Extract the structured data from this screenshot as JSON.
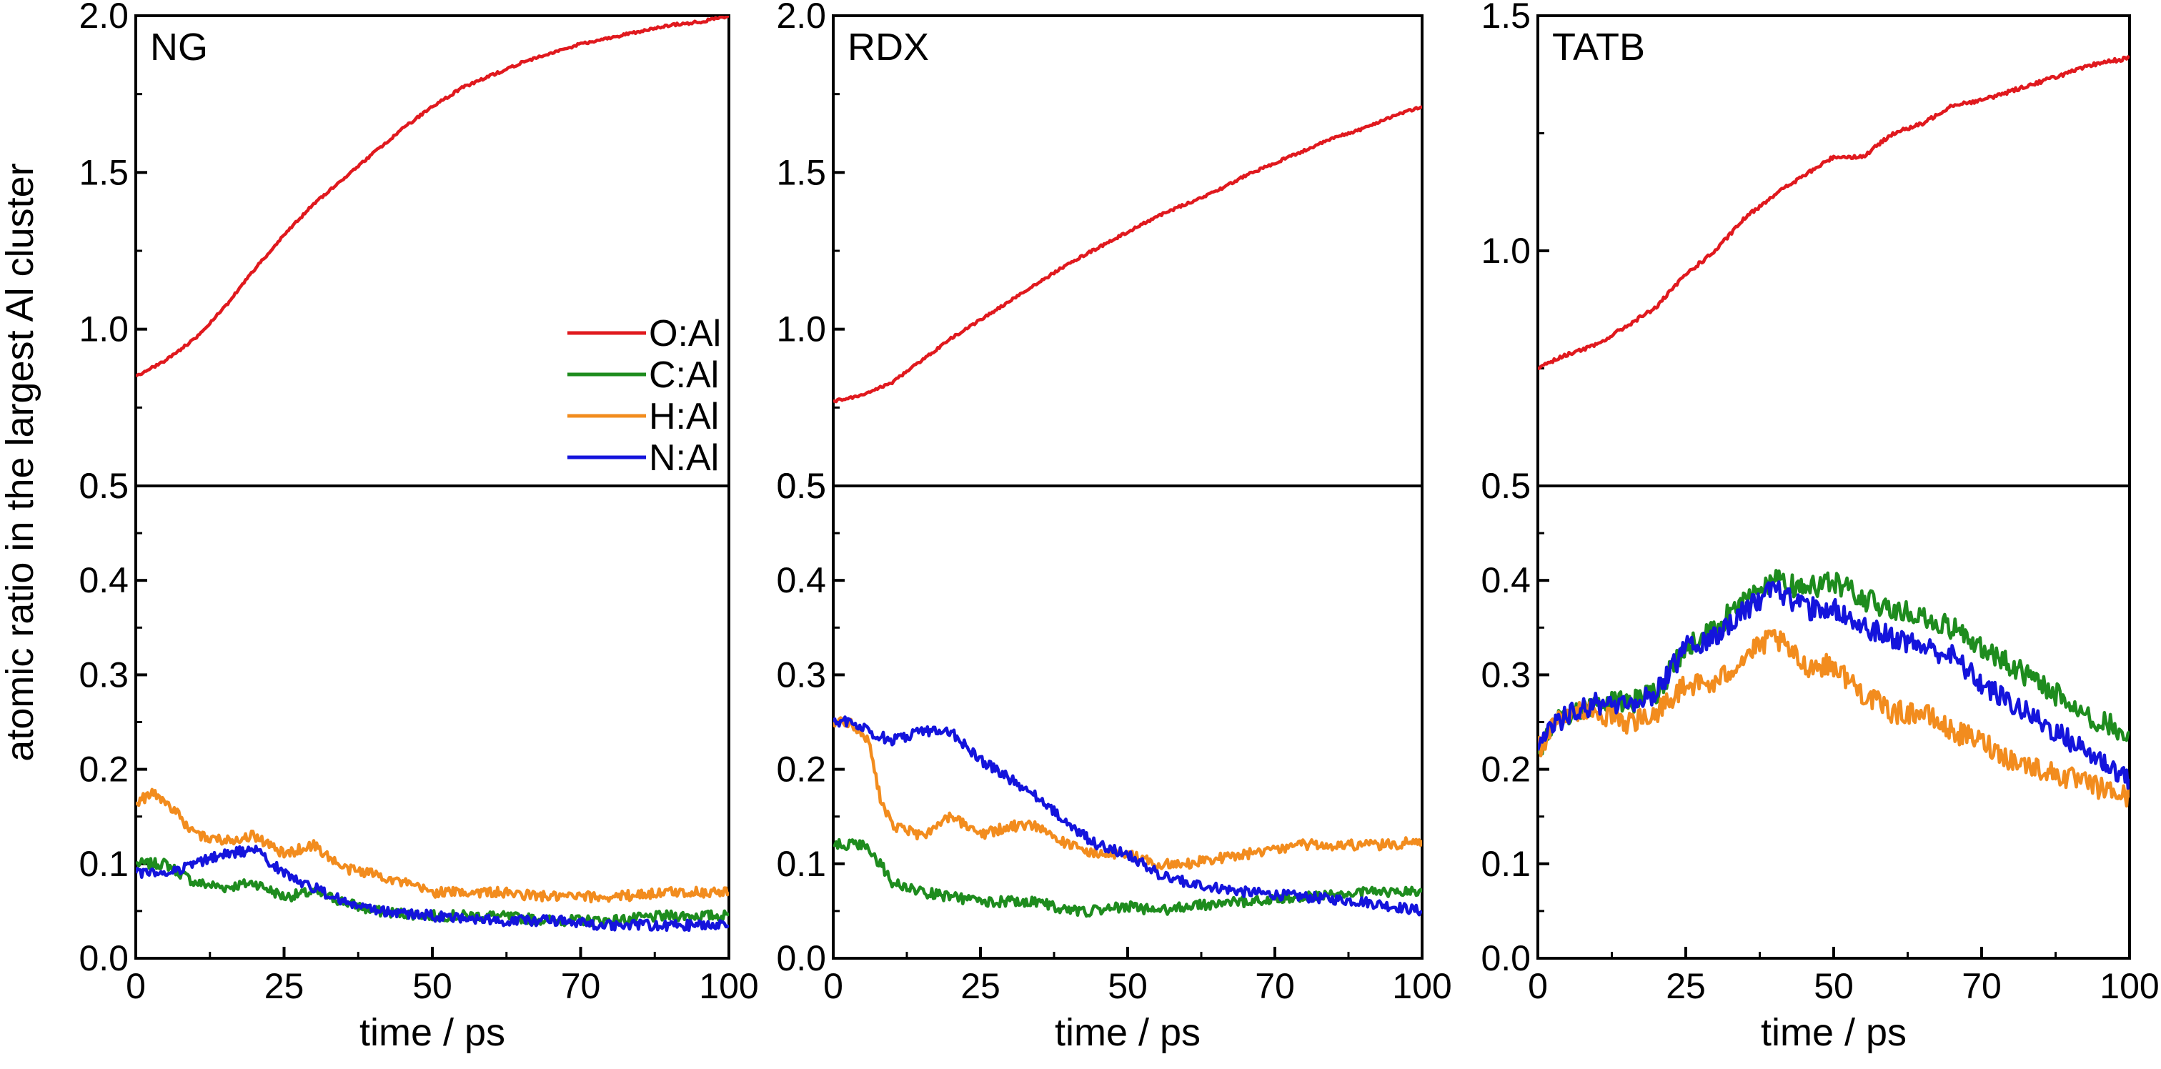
{
  "ylabel": "atomic ratio in the largest Al cluster",
  "xlabel": "time / ps",
  "legend": [
    "O:Al",
    "C:Al",
    "H:Al",
    "N:Al"
  ],
  "colors": {
    "O:Al": "#e0191e",
    "C:Al": "#1e8c1e",
    "H:Al": "#f28c1e",
    "N:Al": "#1414dc"
  },
  "chart_data": [
    {
      "type": "line",
      "title": "NG",
      "xlim": [
        0,
        100
      ],
      "ylim_top": [
        0.5,
        2.0
      ],
      "ylim_bottom": [
        0.0,
        0.5
      ],
      "x_ticks": [
        "0",
        "25",
        "50",
        "70",
        "100"
      ],
      "series": [
        {
          "name": "O:Al",
          "x": [
            0,
            5,
            10,
            15,
            20,
            25,
            30,
            35,
            40,
            45,
            50,
            55,
            60,
            65,
            70,
            75,
            80,
            85,
            90,
            95,
            100
          ],
          "y": [
            0.85,
            0.9,
            0.97,
            1.07,
            1.19,
            1.3,
            1.4,
            1.48,
            1.56,
            1.64,
            1.71,
            1.77,
            1.81,
            1.85,
            1.88,
            1.91,
            1.93,
            1.95,
            1.97,
            1.98,
            2.0
          ]
        },
        {
          "name": "C:Al",
          "x": [
            0,
            5,
            10,
            15,
            20,
            25,
            30,
            35,
            40,
            50,
            60,
            70,
            80,
            90,
            100
          ],
          "y": [
            0.1,
            0.1,
            0.08,
            0.075,
            0.08,
            0.065,
            0.07,
            0.06,
            0.05,
            0.045,
            0.045,
            0.04,
            0.04,
            0.045,
            0.045
          ]
        },
        {
          "name": "H:Al",
          "x": [
            0,
            3,
            6,
            10,
            15,
            20,
            25,
            30,
            35,
            40,
            45,
            50,
            55,
            60,
            70,
            80,
            90,
            100
          ],
          "y": [
            0.165,
            0.175,
            0.16,
            0.13,
            0.125,
            0.13,
            0.11,
            0.12,
            0.095,
            0.09,
            0.08,
            0.07,
            0.07,
            0.07,
            0.065,
            0.065,
            0.07,
            0.07
          ]
        },
        {
          "name": "N:Al",
          "x": [
            0,
            5,
            10,
            15,
            20,
            25,
            30,
            35,
            40,
            50,
            60,
            70,
            80,
            90,
            100
          ],
          "y": [
            0.09,
            0.09,
            0.1,
            0.11,
            0.115,
            0.09,
            0.075,
            0.06,
            0.05,
            0.045,
            0.04,
            0.04,
            0.035,
            0.035,
            0.035
          ]
        }
      ]
    },
    {
      "type": "line",
      "title": "RDX",
      "xlim": [
        0,
        100
      ],
      "ylim_top": [
        0.5,
        2.0
      ],
      "ylim_bottom": [
        0.0,
        0.5
      ],
      "x_ticks": [
        "0",
        "25",
        "50",
        "70",
        "100"
      ],
      "series": [
        {
          "name": "O:Al",
          "x": [
            0,
            5,
            10,
            15,
            20,
            25,
            30,
            35,
            40,
            45,
            50,
            55,
            60,
            65,
            70,
            75,
            80,
            85,
            90,
            95,
            100
          ],
          "y": [
            0.77,
            0.79,
            0.83,
            0.9,
            0.97,
            1.03,
            1.09,
            1.15,
            1.21,
            1.26,
            1.31,
            1.36,
            1.4,
            1.44,
            1.49,
            1.53,
            1.57,
            1.61,
            1.64,
            1.68,
            1.71
          ]
        },
        {
          "name": "C:Al",
          "x": [
            0,
            5,
            8,
            10,
            15,
            20,
            25,
            30,
            35,
            40,
            45,
            50,
            55,
            60,
            70,
            80,
            90,
            100
          ],
          "y": [
            0.12,
            0.12,
            0.1,
            0.08,
            0.07,
            0.065,
            0.06,
            0.06,
            0.06,
            0.05,
            0.05,
            0.055,
            0.05,
            0.055,
            0.06,
            0.065,
            0.07,
            0.07
          ]
        },
        {
          "name": "H:Al",
          "x": [
            0,
            3,
            6,
            8,
            10,
            15,
            20,
            25,
            30,
            35,
            40,
            45,
            50,
            55,
            60,
            70,
            80,
            90,
            95,
            100
          ],
          "y": [
            0.25,
            0.25,
            0.23,
            0.17,
            0.14,
            0.13,
            0.15,
            0.13,
            0.14,
            0.14,
            0.12,
            0.11,
            0.11,
            0.1,
            0.1,
            0.11,
            0.12,
            0.12,
            0.12,
            0.125
          ]
        },
        {
          "name": "N:Al",
          "x": [
            0,
            3,
            6,
            10,
            15,
            20,
            25,
            30,
            35,
            40,
            45,
            50,
            55,
            60,
            70,
            80,
            90,
            100
          ],
          "y": [
            0.25,
            0.25,
            0.24,
            0.23,
            0.24,
            0.24,
            0.21,
            0.19,
            0.17,
            0.14,
            0.12,
            0.11,
            0.09,
            0.08,
            0.07,
            0.065,
            0.06,
            0.05
          ]
        }
      ]
    },
    {
      "type": "line",
      "title": "TATB",
      "xlim": [
        0,
        100
      ],
      "ylim_top": [
        0.5,
        1.5
      ],
      "ylim_bottom": [
        0.0,
        0.5
      ],
      "x_ticks": [
        "0",
        "25",
        "50",
        "70",
        "100"
      ],
      "series": [
        {
          "name": "O:Al",
          "x": [
            0,
            5,
            10,
            15,
            20,
            25,
            30,
            35,
            40,
            45,
            50,
            55,
            60,
            65,
            70,
            75,
            80,
            85,
            90,
            95,
            100
          ],
          "y": [
            0.75,
            0.78,
            0.8,
            0.84,
            0.88,
            0.95,
            1.0,
            1.07,
            1.12,
            1.16,
            1.2,
            1.2,
            1.25,
            1.27,
            1.31,
            1.32,
            1.34,
            1.36,
            1.38,
            1.4,
            1.41
          ]
        },
        {
          "name": "C:Al",
          "x": [
            0,
            3,
            6,
            10,
            15,
            20,
            25,
            30,
            35,
            40,
            45,
            50,
            55,
            60,
            65,
            70,
            75,
            80,
            85,
            90,
            95,
            100
          ],
          "y": [
            0.22,
            0.25,
            0.26,
            0.27,
            0.27,
            0.28,
            0.33,
            0.35,
            0.38,
            0.4,
            0.39,
            0.4,
            0.38,
            0.37,
            0.36,
            0.35,
            0.33,
            0.31,
            0.29,
            0.27,
            0.25,
            0.24
          ]
        },
        {
          "name": "H:Al",
          "x": [
            0,
            3,
            6,
            10,
            15,
            20,
            25,
            30,
            35,
            40,
            45,
            50,
            55,
            60,
            65,
            70,
            75,
            80,
            85,
            90,
            95,
            100
          ],
          "y": [
            0.22,
            0.25,
            0.26,
            0.26,
            0.25,
            0.26,
            0.29,
            0.29,
            0.32,
            0.34,
            0.31,
            0.31,
            0.28,
            0.26,
            0.26,
            0.24,
            0.23,
            0.21,
            0.2,
            0.19,
            0.18,
            0.17
          ]
        },
        {
          "name": "N:Al",
          "x": [
            0,
            3,
            6,
            10,
            15,
            20,
            25,
            30,
            35,
            40,
            45,
            50,
            55,
            60,
            65,
            70,
            75,
            80,
            85,
            90,
            95,
            100
          ],
          "y": [
            0.22,
            0.25,
            0.26,
            0.27,
            0.27,
            0.28,
            0.33,
            0.34,
            0.37,
            0.39,
            0.37,
            0.37,
            0.35,
            0.34,
            0.33,
            0.32,
            0.29,
            0.27,
            0.25,
            0.23,
            0.21,
            0.19
          ]
        }
      ]
    }
  ]
}
